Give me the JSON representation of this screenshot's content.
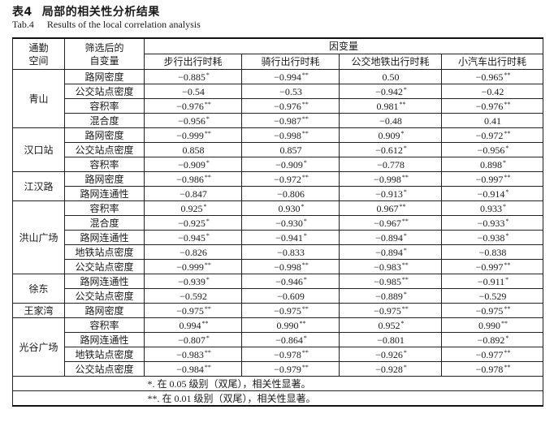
{
  "caption": {
    "zh_number": "表4",
    "zh_title": "局部的相关性分析结果",
    "en_number": "Tab.4",
    "en_title": "Results of the local correlation analysis"
  },
  "headers": {
    "space": "通勤空间",
    "factor": "筛选后的自变量",
    "dependent": "因变量",
    "cols": [
      "步行出行时耗",
      "骑行出行时耗",
      "公交地铁出行时耗",
      "小汽车出行时耗"
    ]
  },
  "groups": [
    {
      "name": "青山",
      "rows": [
        {
          "factor": "路网密度",
          "vals": [
            [
              "−0.885",
              "*"
            ],
            [
              "−0.994",
              "**"
            ],
            [
              "0.50",
              ""
            ],
            [
              "−0.965",
              "**"
            ]
          ]
        },
        {
          "factor": "公交站点密度",
          "vals": [
            [
              "−0.54",
              ""
            ],
            [
              "−0.53",
              ""
            ],
            [
              "−0.942",
              "*"
            ],
            [
              "−0.42",
              ""
            ]
          ]
        },
        {
          "factor": "容积率",
          "vals": [
            [
              "−0.976",
              "**"
            ],
            [
              "−0.976",
              "**"
            ],
            [
              "0.981",
              "**"
            ],
            [
              "−0.976",
              "**"
            ]
          ]
        },
        {
          "factor": "混合度",
          "vals": [
            [
              "−0.956",
              "*"
            ],
            [
              "−0.987",
              "**"
            ],
            [
              "−0.48",
              ""
            ],
            [
              "0.41",
              ""
            ]
          ]
        }
      ]
    },
    {
      "name": "汉口站",
      "rows": [
        {
          "factor": "路网密度",
          "vals": [
            [
              "−0.999",
              "**"
            ],
            [
              "−0.998",
              "**"
            ],
            [
              "0.909",
              "*"
            ],
            [
              "−0.972",
              "**"
            ]
          ]
        },
        {
          "factor": "公交站点密度",
          "vals": [
            [
              "0.858",
              ""
            ],
            [
              "0.857",
              ""
            ],
            [
              "−0.612",
              "*"
            ],
            [
              "−0.956",
              "*"
            ]
          ]
        },
        {
          "factor": "容积率",
          "vals": [
            [
              "−0.909",
              "*"
            ],
            [
              "−0.909",
              "*"
            ],
            [
              "−0.778",
              ""
            ],
            [
              "0.898",
              "*"
            ]
          ]
        }
      ]
    },
    {
      "name": "江汉路",
      "rows": [
        {
          "factor": "路网密度",
          "vals": [
            [
              "−0.986",
              "**"
            ],
            [
              "−0.972",
              "**"
            ],
            [
              "−0.998",
              "**"
            ],
            [
              "−0.997",
              "**"
            ]
          ]
        },
        {
          "factor": "路网连通性",
          "vals": [
            [
              "−0.847",
              ""
            ],
            [
              "−0.806",
              ""
            ],
            [
              "−0.913",
              "*"
            ],
            [
              "−0.914",
              "*"
            ]
          ]
        }
      ]
    },
    {
      "name": "洪山广场",
      "rows": [
        {
          "factor": "容积率",
          "vals": [
            [
              "0.925",
              "*"
            ],
            [
              "0.930",
              "*"
            ],
            [
              "0.967",
              "**"
            ],
            [
              "0.933",
              "*"
            ]
          ]
        },
        {
          "factor": "混合度",
          "vals": [
            [
              "−0.925",
              "*"
            ],
            [
              "−0.930",
              "*"
            ],
            [
              "−0.967",
              "**"
            ],
            [
              "−0.933",
              "*"
            ]
          ]
        },
        {
          "factor": "路网连通性",
          "vals": [
            [
              "−0.945",
              "*"
            ],
            [
              "−0.941",
              "*"
            ],
            [
              "−0.894",
              "*"
            ],
            [
              "−0.938",
              "*"
            ]
          ]
        },
        {
          "factor": "地铁站点密度",
          "vals": [
            [
              "−0.826",
              ""
            ],
            [
              "−0.833",
              ""
            ],
            [
              "−0.894",
              "*"
            ],
            [
              "−0.838",
              ""
            ]
          ]
        },
        {
          "factor": "公交站点密度",
          "vals": [
            [
              "−0.999",
              "**"
            ],
            [
              "−0.998",
              "**"
            ],
            [
              "−0.983",
              "**"
            ],
            [
              "−0.997",
              "**"
            ]
          ]
        }
      ]
    },
    {
      "name": "徐东",
      "rows": [
        {
          "factor": "路网连通性",
          "vals": [
            [
              "−0.939",
              "*"
            ],
            [
              "−0.946",
              "*"
            ],
            [
              "−0.985",
              "**"
            ],
            [
              "−0.911",
              "*"
            ]
          ]
        },
        {
          "factor": "公交站点密度",
          "vals": [
            [
              "−0.592",
              ""
            ],
            [
              "−0.609",
              ""
            ],
            [
              "−0.889",
              "*"
            ],
            [
              "−0.529",
              ""
            ]
          ]
        }
      ]
    },
    {
      "name": "王家湾",
      "rows": [
        {
          "factor": "路网密度",
          "vals": [
            [
              "−0.975",
              "**"
            ],
            [
              "−0.975",
              "**"
            ],
            [
              "−0.975",
              "**"
            ],
            [
              "−0.975",
              "**"
            ]
          ]
        }
      ]
    },
    {
      "name": "光谷广场",
      "rows": [
        {
          "factor": "容积率",
          "vals": [
            [
              "0.994",
              "**"
            ],
            [
              "0.990",
              "**"
            ],
            [
              "0.952",
              "*"
            ],
            [
              "0.990",
              "**"
            ]
          ]
        },
        {
          "factor": "路网连通性",
          "vals": [
            [
              "−0.807",
              "*"
            ],
            [
              "−0.864",
              "*"
            ],
            [
              "−0.801",
              ""
            ],
            [
              "−0.892",
              "*"
            ]
          ]
        },
        {
          "factor": "地铁站点密度",
          "vals": [
            [
              "−0.983",
              "**"
            ],
            [
              "−0.978",
              "**"
            ],
            [
              "−0.926",
              "*"
            ],
            [
              "−0.977",
              "**"
            ]
          ]
        },
        {
          "factor": "公交站点密度",
          "vals": [
            [
              "−0.984",
              "**"
            ],
            [
              "−0.979",
              "**"
            ],
            [
              "−0.928",
              "*"
            ],
            [
              "−0.978",
              "**"
            ]
          ]
        }
      ]
    }
  ],
  "notes": [
    "*. 在 0.05 级别（双尾），相关性显著。",
    "**. 在 0.01 级别（双尾），相关性显著。"
  ]
}
